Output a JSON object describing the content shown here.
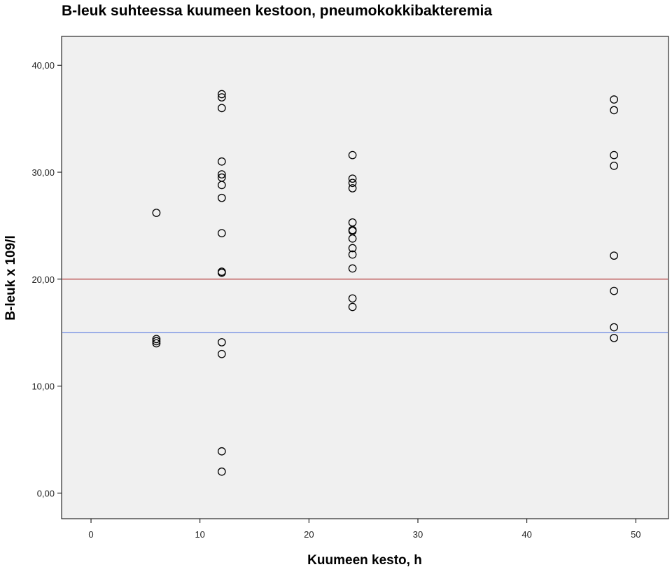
{
  "chart_data": {
    "type": "scatter",
    "title": "B-leuk suhteessa kuumeen kestoon, pneumokokkibakteremia",
    "xlabel": "Kuumeen kesto, h",
    "ylabel": "B-leuk x 109/l",
    "xlim": [
      -2.7,
      53
    ],
    "ylim": [
      -2.4,
      42.7
    ],
    "x_ticks": [
      0,
      10,
      20,
      30,
      40,
      50
    ],
    "x_tick_labels": [
      "0",
      "10",
      "20",
      "30",
      "40",
      "50"
    ],
    "y_ticks": [
      0,
      10,
      20,
      30,
      40
    ],
    "y_tick_labels": [
      "0,00",
      "10,00",
      "20,00",
      "30,00",
      "40,00"
    ],
    "grid": false,
    "plot_background": "#f0f0f0",
    "marker_color": "#000000",
    "reference_lines": [
      {
        "y": 20,
        "color": "#b03030"
      },
      {
        "y": 15,
        "color": "#5b7be0"
      }
    ],
    "points": [
      {
        "x": 6,
        "y": 26.2
      },
      {
        "x": 6,
        "y": 14.4
      },
      {
        "x": 6,
        "y": 14.2
      },
      {
        "x": 6,
        "y": 14.0
      },
      {
        "x": 12,
        "y": 37.3
      },
      {
        "x": 12,
        "y": 37.0
      },
      {
        "x": 12,
        "y": 36.0
      },
      {
        "x": 12,
        "y": 31.0
      },
      {
        "x": 12,
        "y": 29.8
      },
      {
        "x": 12,
        "y": 29.5
      },
      {
        "x": 12,
        "y": 28.8
      },
      {
        "x": 12,
        "y": 27.6
      },
      {
        "x": 12,
        "y": 24.3
      },
      {
        "x": 12,
        "y": 20.7
      },
      {
        "x": 12,
        "y": 20.6
      },
      {
        "x": 12,
        "y": 14.1
      },
      {
        "x": 12,
        "y": 13.0
      },
      {
        "x": 12,
        "y": 3.9
      },
      {
        "x": 12,
        "y": 2.0
      },
      {
        "x": 24,
        "y": 31.6
      },
      {
        "x": 24,
        "y": 29.4
      },
      {
        "x": 24,
        "y": 29.0
      },
      {
        "x": 24,
        "y": 28.5
      },
      {
        "x": 24,
        "y": 25.3
      },
      {
        "x": 24,
        "y": 24.6
      },
      {
        "x": 24,
        "y": 24.5
      },
      {
        "x": 24,
        "y": 23.8
      },
      {
        "x": 24,
        "y": 22.9
      },
      {
        "x": 24,
        "y": 22.3
      },
      {
        "x": 24,
        "y": 21.0
      },
      {
        "x": 24,
        "y": 18.2
      },
      {
        "x": 24,
        "y": 17.4
      },
      {
        "x": 48,
        "y": 36.8
      },
      {
        "x": 48,
        "y": 35.8
      },
      {
        "x": 48,
        "y": 31.6
      },
      {
        "x": 48,
        "y": 30.6
      },
      {
        "x": 48,
        "y": 22.2
      },
      {
        "x": 48,
        "y": 18.9
      },
      {
        "x": 48,
        "y": 15.5
      },
      {
        "x": 48,
        "y": 14.5
      }
    ]
  }
}
